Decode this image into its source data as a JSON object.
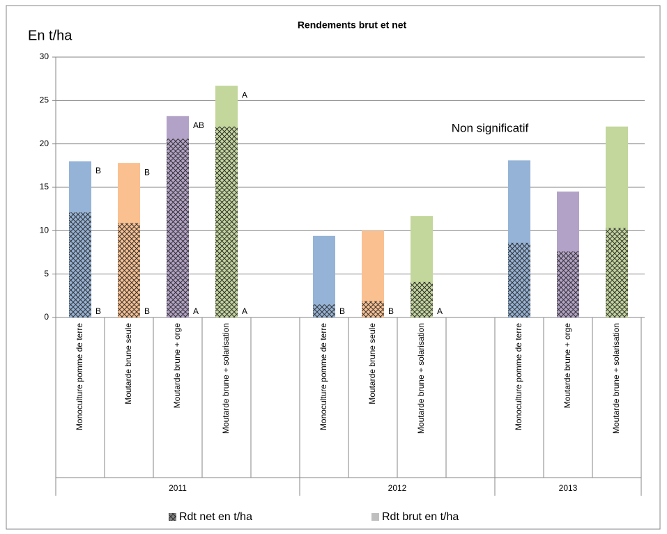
{
  "chart_data": {
    "type": "bar",
    "title": "Rendements brut et net",
    "y_label": "En t/ha",
    "annotation": "Non significatif",
    "categories": [
      "Monoculture pomme de terre",
      "Moutarde brune seule",
      "Moutarde brune + orge",
      "Moutarde brune + solarisation",
      null,
      "Monoculture pomme de terre",
      "Moutarde brune seule",
      "Moutarde brune + solarisation",
      null,
      "Monoculture pomme de terre",
      "Moutarde brune + orge",
      "Moutarde brune + solarisation"
    ],
    "groups": [
      "2011",
      "2012",
      "2013"
    ],
    "category_group": [
      0,
      0,
      0,
      0,
      0,
      1,
      1,
      1,
      1,
      2,
      2,
      2
    ],
    "bar_colors": [
      "#95b3d7",
      "#fac090",
      "#b3a2c7",
      "#c3d69b",
      null,
      "#95b3d7",
      "#fac090",
      "#c3d69b",
      null,
      "#95b3d7",
      "#b3a2c7",
      "#c3d69b"
    ],
    "series": [
      {
        "name": "Rdt brut en t/ha",
        "color": "#bfbfbf",
        "values": [
          18.0,
          17.8,
          23.2,
          26.7,
          null,
          9.4,
          10.0,
          11.7,
          null,
          18.1,
          14.5,
          22.0
        ],
        "letters": [
          "B",
          "B",
          "AB",
          "A",
          null,
          null,
          null,
          null,
          null,
          null,
          null,
          null
        ]
      },
      {
        "name": "Rdt net en t/ha",
        "color": "#7f7f7f",
        "values": [
          12.1,
          10.9,
          20.6,
          22.0,
          null,
          1.5,
          1.9,
          4.1,
          null,
          8.6,
          7.6,
          10.3
        ],
        "letters": [
          "B",
          "B",
          "A",
          "A",
          null,
          "B",
          "B",
          "A",
          null,
          null,
          null,
          null
        ]
      }
    ],
    "ylim": [
      0,
      30
    ],
    "yticks": [
      0,
      5,
      10,
      15,
      20,
      25,
      30
    ],
    "grid": true
  }
}
